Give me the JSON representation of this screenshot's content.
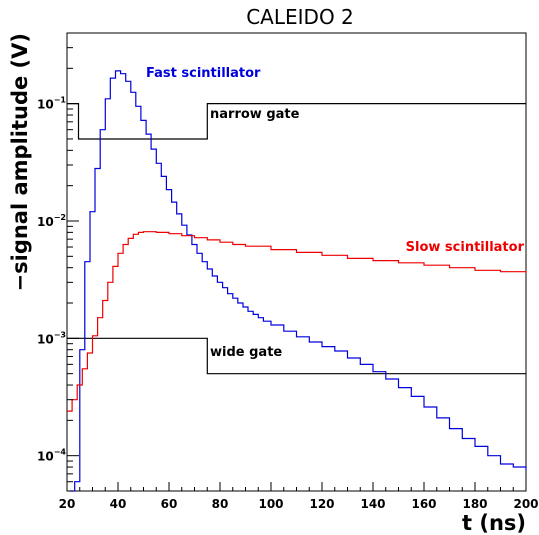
{
  "chart_data": {
    "type": "line",
    "title": "CALEIDO 2",
    "xlabel": "t (ns)",
    "ylabel": "−signal amplitude (V)",
    "xlim": [
      20,
      200
    ],
    "ylim": [
      5e-05,
      0.4
    ],
    "yscale": "log",
    "x_ticks": [
      "20",
      "40",
      "60",
      "80",
      "100",
      "120",
      "140",
      "160",
      "180",
      "200"
    ],
    "y_ticks": [
      {
        "base": "10",
        "exp": "−4"
      },
      {
        "base": "10",
        "exp": "−3"
      },
      {
        "base": "10",
        "exp": "−2"
      },
      {
        "base": "10",
        "exp": "−1"
      }
    ],
    "grid": false,
    "series": [
      {
        "name": "Fast scintillator",
        "color": "#0000dd",
        "x": [
          21,
          23,
          25,
          27,
          29,
          31,
          33,
          35,
          37,
          39,
          41,
          43,
          45,
          47,
          49,
          51,
          53,
          55,
          57,
          59,
          61,
          63,
          65,
          67,
          69,
          71,
          73,
          75,
          77,
          79,
          81,
          83,
          85,
          87,
          89,
          91,
          93,
          95,
          97,
          100,
          105,
          110,
          115,
          120,
          125,
          130,
          135,
          140,
          145,
          150,
          155,
          160,
          165,
          170,
          175,
          180,
          185,
          190,
          195,
          200
        ],
        "y": [
          3e-05,
          6e-05,
          0.0008,
          0.0045,
          0.012,
          0.028,
          0.06,
          0.11,
          0.165,
          0.19,
          0.18,
          0.155,
          0.125,
          0.095,
          0.072,
          0.055,
          0.041,
          0.031,
          0.024,
          0.0185,
          0.0145,
          0.0115,
          0.0092,
          0.0076,
          0.0063,
          0.0053,
          0.0045,
          0.0039,
          0.0034,
          0.003,
          0.0027,
          0.0024,
          0.0022,
          0.002,
          0.00185,
          0.0017,
          0.0016,
          0.0015,
          0.0014,
          0.0013,
          0.00115,
          0.00103,
          0.00093,
          0.00085,
          0.00078,
          0.00068,
          0.0006,
          0.00052,
          0.00045,
          0.00038,
          0.00032,
          0.00026,
          0.00021,
          0.00017,
          0.00014,
          0.00012,
          0.0001,
          8.5e-05,
          8e-05,
          7.5e-05
        ]
      },
      {
        "name": "Slow scintillator",
        "color": "#ee0000",
        "x": [
          20,
          22,
          24,
          26,
          28,
          30,
          32,
          34,
          36,
          38,
          40,
          42,
          44,
          46,
          48,
          50,
          52,
          55,
          60,
          65,
          70,
          75,
          80,
          85,
          90,
          100,
          110,
          120,
          130,
          140,
          150,
          160,
          170,
          180,
          190,
          200
        ],
        "y": [
          0.00024,
          0.0003,
          0.0004,
          0.00055,
          0.00075,
          0.00105,
          0.0015,
          0.0021,
          0.003,
          0.0041,
          0.0053,
          0.0063,
          0.0071,
          0.0077,
          0.008,
          0.0081,
          0.0081,
          0.008,
          0.0078,
          0.0075,
          0.0072,
          0.0069,
          0.0066,
          0.0063,
          0.0061,
          0.0057,
          0.0054,
          0.0051,
          0.0048,
          0.0046,
          0.0044,
          0.0042,
          0.004,
          0.0038,
          0.0037,
          0.0036
        ]
      }
    ],
    "annotations": [
      {
        "text": "Fast scintillator",
        "color": "#0000dd"
      },
      {
        "text": "Slow scintillator",
        "color": "#ee0000"
      },
      {
        "text": "narrow gate",
        "color": "#000000"
      },
      {
        "text": "wide gate",
        "color": "#000000"
      }
    ],
    "gates": [
      {
        "name": "narrow gate",
        "x": [
          20,
          24.5,
          24.5,
          75,
          75,
          200
        ],
        "y": [
          0.1,
          0.1,
          0.05,
          0.05,
          0.1,
          0.1
        ]
      },
      {
        "name": "wide gate",
        "x": [
          20,
          75,
          75,
          200
        ],
        "y": [
          0.001,
          0.001,
          0.0005,
          0.0005
        ]
      }
    ]
  }
}
